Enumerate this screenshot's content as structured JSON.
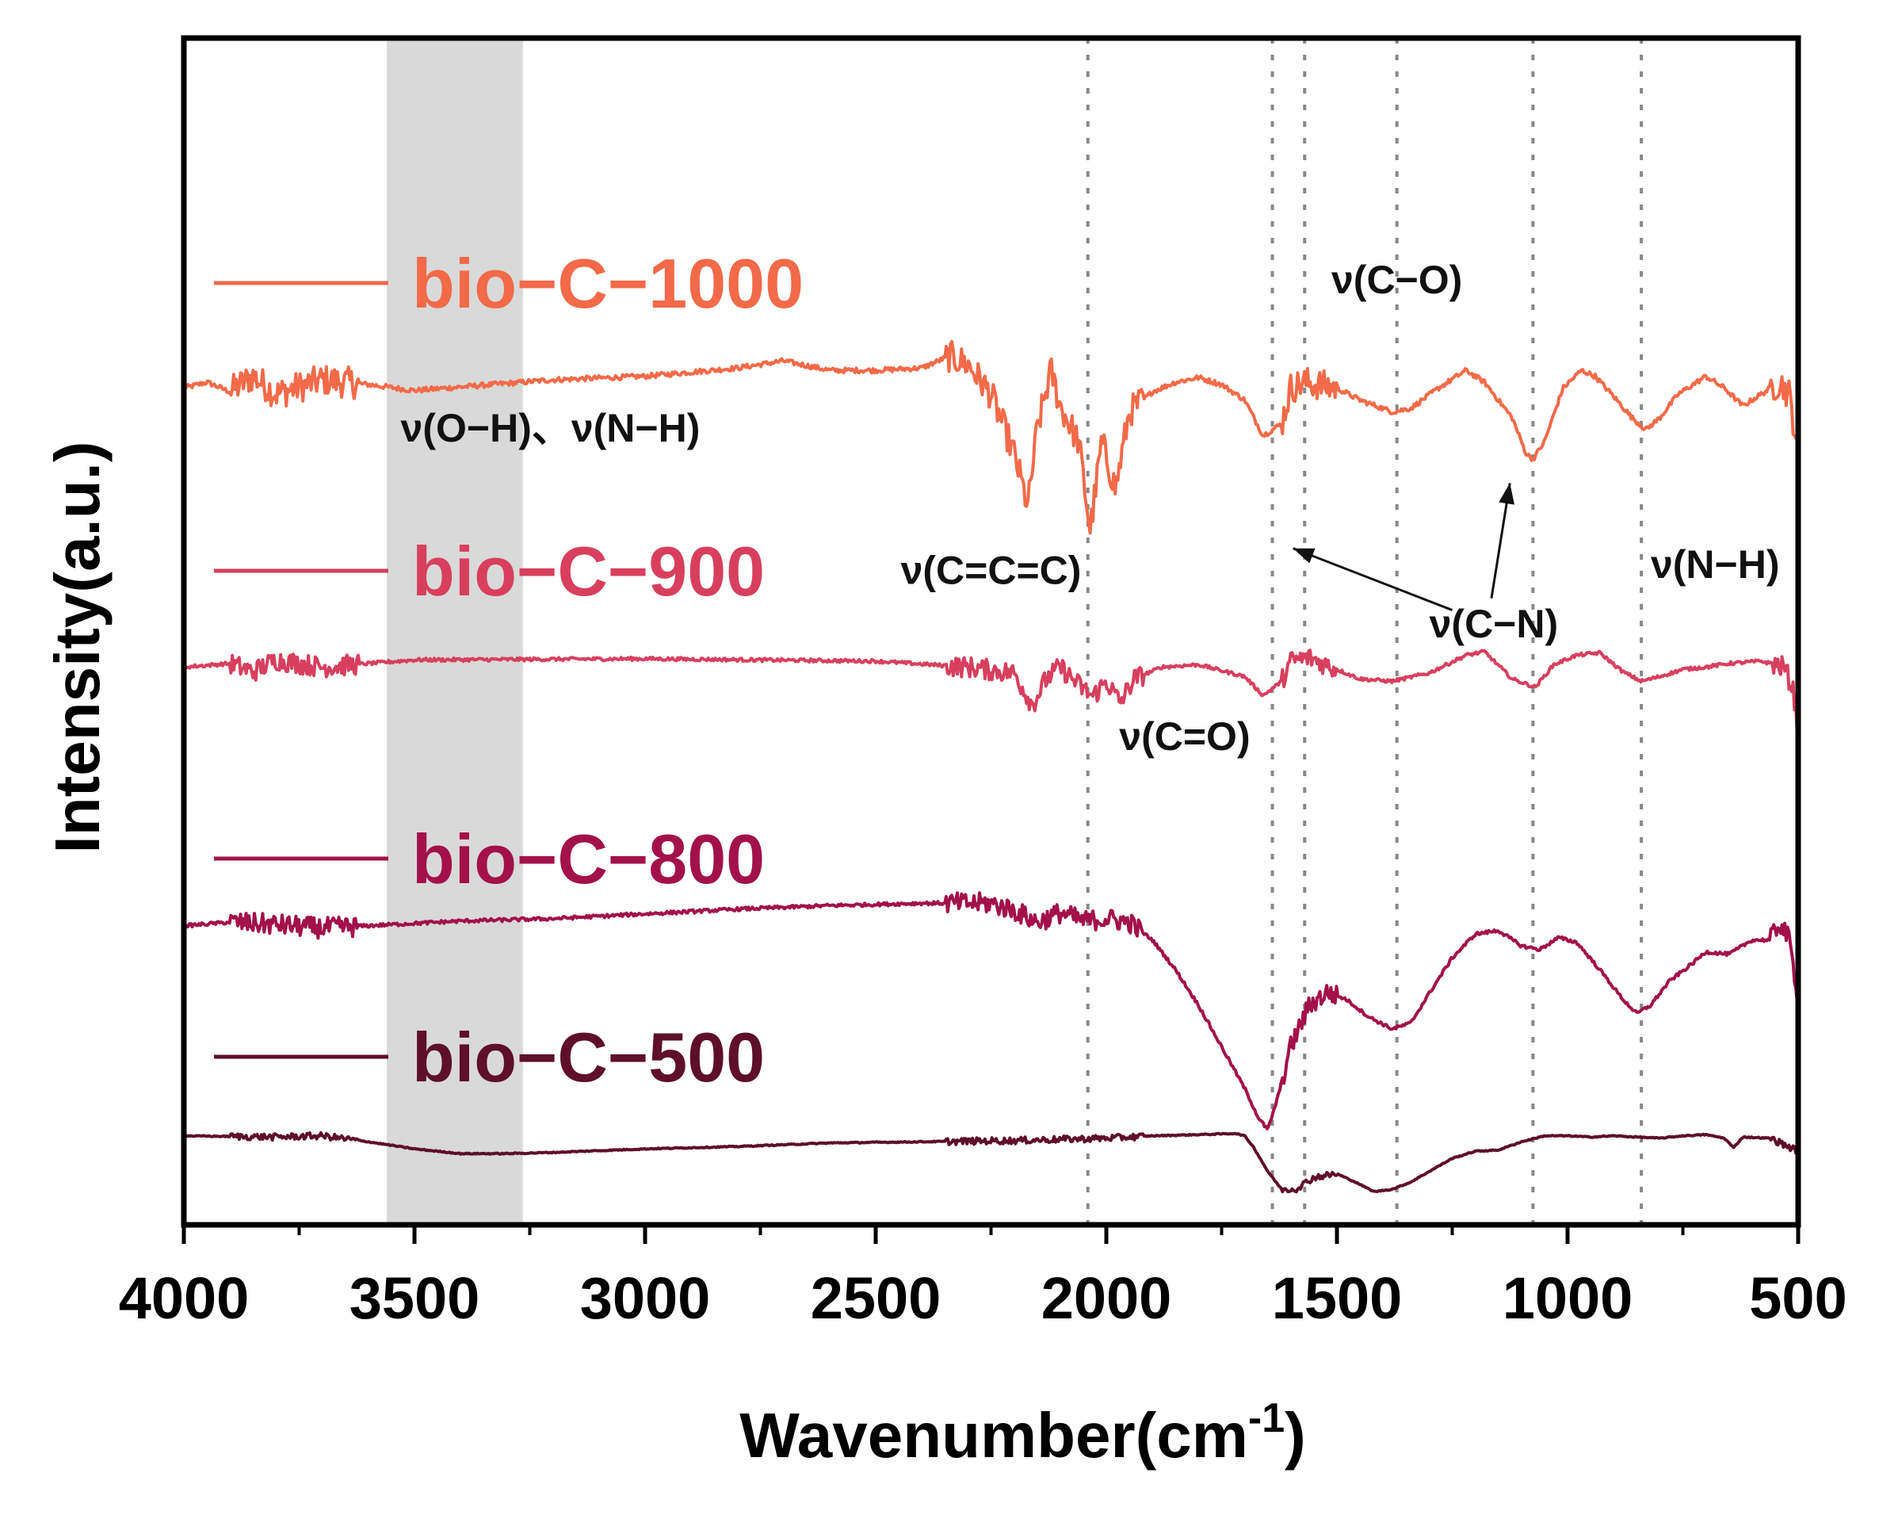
{
  "chart_data": {
    "type": "line",
    "title": "",
    "xlabel": "Wavenumber(cm",
    "xlabel_sup": "-1",
    "xlabel_close": ")",
    "ylabel": "Intensity(a.u.)",
    "xlim": [
      4000,
      500
    ],
    "x_reversed": true,
    "ylim": [
      0,
      100
    ],
    "y_ticks_visible": false,
    "xticks": [
      4000,
      3500,
      3000,
      2500,
      2000,
      1500,
      1000,
      500
    ],
    "xtick_labels": [
      "4000",
      "3500",
      "3000",
      "2500",
      "2000",
      "1500",
      "1000",
      "500"
    ],
    "grid": false,
    "shaded_band": {
      "x_from": 3560,
      "x_to": 3265,
      "color": "#d9d9d9"
    },
    "reference_lines": [
      {
        "x": 2040,
        "style": "dotted"
      },
      {
        "x": 1640,
        "style": "dotted"
      },
      {
        "x": 1570,
        "style": "dotted"
      },
      {
        "x": 1370,
        "style": "dotted"
      },
      {
        "x": 1075,
        "style": "dotted"
      },
      {
        "x": 840,
        "style": "dotted"
      }
    ],
    "series": [
      {
        "name": "bio−C−1000",
        "color": "#f26a48",
        "noise": 1.2,
        "points": [
          [
            4000,
            70.5
          ],
          [
            3950,
            71.0
          ],
          [
            3900,
            70.2
          ],
          [
            3850,
            71.5
          ],
          [
            3800,
            70.0
          ],
          [
            3700,
            71.2
          ],
          [
            3600,
            70.8
          ],
          [
            3500,
            70.3
          ],
          [
            3400,
            70.6
          ],
          [
            3200,
            71.2
          ],
          [
            3000,
            71.5
          ],
          [
            2800,
            72.2
          ],
          [
            2700,
            72.8
          ],
          [
            2600,
            72.0
          ],
          [
            2500,
            72.0
          ],
          [
            2400,
            72.2
          ],
          [
            2340,
            73.2
          ],
          [
            2300,
            72.5
          ],
          [
            2250,
            70.0
          ],
          [
            2200,
            65.0
          ],
          [
            2170,
            60.5
          ],
          [
            2150,
            67.0
          ],
          [
            2120,
            72.0
          ],
          [
            2100,
            69.0
          ],
          [
            2060,
            66.0
          ],
          [
            2035,
            58.5
          ],
          [
            2010,
            66.0
          ],
          [
            1980,
            62.0
          ],
          [
            1950,
            68.5
          ],
          [
            1900,
            70.2
          ],
          [
            1850,
            71.0
          ],
          [
            1800,
            71.4
          ],
          [
            1750,
            70.8
          ],
          [
            1700,
            69.5
          ],
          [
            1660,
            66.5
          ],
          [
            1620,
            67.5
          ],
          [
            1600,
            70.5
          ],
          [
            1570,
            71.0
          ],
          [
            1500,
            70.5
          ],
          [
            1450,
            69.5
          ],
          [
            1380,
            68.5
          ],
          [
            1340,
            68.8
          ],
          [
            1280,
            70.5
          ],
          [
            1220,
            72.0
          ],
          [
            1180,
            71.0
          ],
          [
            1120,
            68.0
          ],
          [
            1090,
            65.0
          ],
          [
            1075,
            64.5
          ],
          [
            1050,
            66.0
          ],
          [
            1010,
            70.5
          ],
          [
            970,
            72.0
          ],
          [
            940,
            71.5
          ],
          [
            900,
            69.8
          ],
          [
            860,
            68.0
          ],
          [
            830,
            67.0
          ],
          [
            800,
            68.0
          ],
          [
            760,
            70.0
          ],
          [
            700,
            71.5
          ],
          [
            660,
            70.5
          ],
          [
            620,
            69.0
          ],
          [
            580,
            70.0
          ],
          [
            540,
            71.0
          ],
          [
            520,
            70.0
          ],
          [
            505,
            66.5
          ],
          [
            500,
            64.0
          ]
        ]
      },
      {
        "name": "bio−C−900",
        "color": "#d83f5e",
        "noise": 0.8,
        "points": [
          [
            4000,
            47.0
          ],
          [
            3900,
            47.3
          ],
          [
            3850,
            46.6
          ],
          [
            3800,
            47.6
          ],
          [
            3700,
            47.0
          ],
          [
            3500,
            47.6
          ],
          [
            3000,
            47.7
          ],
          [
            2500,
            47.5
          ],
          [
            2300,
            47.0
          ],
          [
            2200,
            46.5
          ],
          [
            2160,
            43.8
          ],
          [
            2130,
            46.0
          ],
          [
            2100,
            47.0
          ],
          [
            2060,
            45.5
          ],
          [
            2030,
            44.5
          ],
          [
            2000,
            45.8
          ],
          [
            1970,
            44.0
          ],
          [
            1940,
            46.0
          ],
          [
            1880,
            47.0
          ],
          [
            1800,
            47.2
          ],
          [
            1700,
            46.2
          ],
          [
            1660,
            44.6
          ],
          [
            1620,
            45.8
          ],
          [
            1600,
            47.5
          ],
          [
            1560,
            47.8
          ],
          [
            1500,
            46.8
          ],
          [
            1450,
            46.0
          ],
          [
            1380,
            45.8
          ],
          [
            1300,
            46.5
          ],
          [
            1220,
            48.0
          ],
          [
            1180,
            48.3
          ],
          [
            1120,
            46.0
          ],
          [
            1070,
            45.3
          ],
          [
            1030,
            47.2
          ],
          [
            980,
            48.0
          ],
          [
            930,
            48.2
          ],
          [
            880,
            46.6
          ],
          [
            840,
            45.8
          ],
          [
            800,
            46.2
          ],
          [
            750,
            46.8
          ],
          [
            700,
            47.0
          ],
          [
            650,
            47.3
          ],
          [
            580,
            47.5
          ],
          [
            530,
            47.0
          ],
          [
            510,
            45.0
          ],
          [
            500,
            41.0
          ]
        ]
      },
      {
        "name": "bio−C−800",
        "color": "#a3114a",
        "noise": 0.8,
        "points": [
          [
            4000,
            25.2
          ],
          [
            3900,
            25.5
          ],
          [
            3800,
            25.3
          ],
          [
            3700,
            25.0
          ],
          [
            3600,
            25.2
          ],
          [
            3400,
            25.6
          ],
          [
            3200,
            25.8
          ],
          [
            3000,
            26.2
          ],
          [
            2800,
            26.6
          ],
          [
            2600,
            26.9
          ],
          [
            2400,
            27.1
          ],
          [
            2250,
            27.1
          ],
          [
            2200,
            26.5
          ],
          [
            2150,
            25.5
          ],
          [
            2100,
            26.3
          ],
          [
            2050,
            25.6
          ],
          [
            2000,
            25.8
          ],
          [
            1950,
            25.5
          ],
          [
            1900,
            24.0
          ],
          [
            1850,
            21.5
          ],
          [
            1800,
            18.5
          ],
          [
            1750,
            15.0
          ],
          [
            1700,
            11.5
          ],
          [
            1670,
            9.0
          ],
          [
            1650,
            8.0
          ],
          [
            1630,
            10.5
          ],
          [
            1600,
            15.0
          ],
          [
            1560,
            18.5
          ],
          [
            1520,
            19.6
          ],
          [
            1480,
            19.0
          ],
          [
            1430,
            17.5
          ],
          [
            1380,
            16.5
          ],
          [
            1340,
            17.0
          ],
          [
            1300,
            19.5
          ],
          [
            1250,
            22.5
          ],
          [
            1200,
            24.5
          ],
          [
            1150,
            24.8
          ],
          [
            1100,
            23.5
          ],
          [
            1060,
            23.2
          ],
          [
            1020,
            24.2
          ],
          [
            980,
            23.8
          ],
          [
            930,
            21.5
          ],
          [
            880,
            19.0
          ],
          [
            850,
            17.8
          ],
          [
            820,
            18.5
          ],
          [
            780,
            20.5
          ],
          [
            730,
            22.0
          ],
          [
            700,
            23.0
          ],
          [
            650,
            22.8
          ],
          [
            600,
            24.0
          ],
          [
            560,
            24.0
          ],
          [
            540,
            25.5
          ],
          [
            520,
            24.0
          ],
          [
            505,
            20.5
          ],
          [
            500,
            19.0
          ]
        ]
      },
      {
        "name": "bio−C−500",
        "color": "#5e0f2a",
        "noise": 0.25,
        "points": [
          [
            4000,
            7.5
          ],
          [
            3800,
            7.4
          ],
          [
            3700,
            7.5
          ],
          [
            3600,
            7.0
          ],
          [
            3500,
            6.4
          ],
          [
            3400,
            6.0
          ],
          [
            3300,
            6.0
          ],
          [
            3200,
            6.1
          ],
          [
            3000,
            6.4
          ],
          [
            2800,
            6.6
          ],
          [
            2600,
            6.9
          ],
          [
            2400,
            7.0
          ],
          [
            2200,
            7.1
          ],
          [
            2000,
            7.3
          ],
          [
            1900,
            7.5
          ],
          [
            1800,
            7.6
          ],
          [
            1720,
            7.7
          ],
          [
            1700,
            7.5
          ],
          [
            1680,
            6.5
          ],
          [
            1650,
            4.5
          ],
          [
            1620,
            3.0
          ],
          [
            1590,
            3.0
          ],
          [
            1550,
            4.0
          ],
          [
            1500,
            4.3
          ],
          [
            1460,
            3.6
          ],
          [
            1420,
            2.8
          ],
          [
            1380,
            3.0
          ],
          [
            1340,
            3.6
          ],
          [
            1300,
            4.5
          ],
          [
            1250,
            5.6
          ],
          [
            1200,
            6.2
          ],
          [
            1150,
            6.3
          ],
          [
            1100,
            7.0
          ],
          [
            1050,
            7.5
          ],
          [
            1000,
            7.5
          ],
          [
            950,
            7.4
          ],
          [
            900,
            7.5
          ],
          [
            850,
            7.4
          ],
          [
            800,
            7.3
          ],
          [
            750,
            7.5
          ],
          [
            700,
            7.6
          ],
          [
            660,
            7.3
          ],
          [
            640,
            6.5
          ],
          [
            620,
            7.4
          ],
          [
            560,
            7.3
          ],
          [
            500,
            6.2
          ]
        ]
      }
    ],
    "legend": {
      "position": "left",
      "entries": [
        "bio−C−1000",
        "bio−C−900",
        "bio−C−800",
        "bio−C−500"
      ]
    },
    "annotations": [
      {
        "text": "ν(O−H)、ν(N−H)",
        "x": 3530,
        "y": 66.0,
        "anchor": "start"
      },
      {
        "text": "ν(C=C=C)",
        "x": 2250,
        "y": 54.0,
        "anchor": "middle"
      },
      {
        "text": "ν(C−O)",
        "x": 1370,
        "y": 78.5,
        "anchor": "middle"
      },
      {
        "text": "ν(C=O)",
        "x": 1830,
        "y": 40.0,
        "anchor": "middle"
      },
      {
        "text": "ν(C−N)",
        "x": 1160,
        "y": 49.5,
        "anchor": "middle"
      },
      {
        "text": "ν(N−H)",
        "x": 680,
        "y": 54.5,
        "anchor": "middle"
      }
    ],
    "arrows": [
      {
        "from": [
          1250,
          51.8
        ],
        "to": [
          1595,
          57.0
        ]
      },
      {
        "from": [
          1165,
          52.8
        ],
        "to": [
          1125,
          62.5
        ]
      }
    ]
  }
}
